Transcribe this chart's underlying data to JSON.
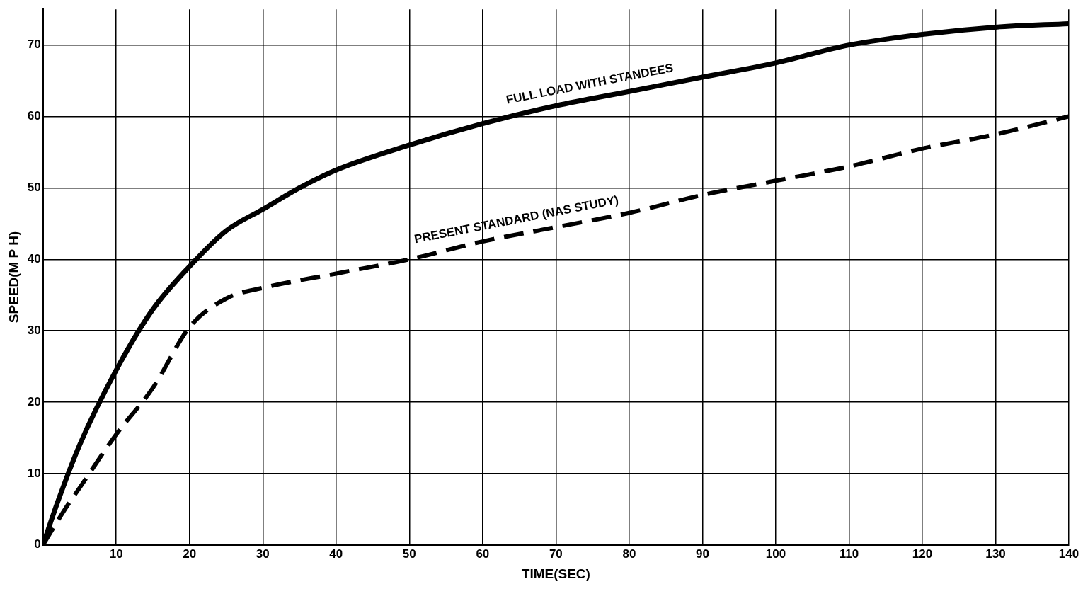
{
  "chart_data": {
    "type": "line",
    "xlabel": "TIME(SEC)",
    "ylabel": "SPEED(M P H)",
    "xlim": [
      0,
      140
    ],
    "xticks": [
      10,
      20,
      30,
      40,
      50,
      60,
      70,
      80,
      90,
      100,
      110,
      120,
      130,
      140
    ],
    "ylim": [
      0,
      75
    ],
    "yticks": [
      0,
      10,
      20,
      30,
      40,
      50,
      60,
      70
    ],
    "grid": true,
    "legend": false,
    "marker": "none",
    "series": [
      {
        "name": "FULL LOAD WITH STANDEES",
        "color": "#000000",
        "line_style": "solid",
        "x": [
          0,
          2,
          5,
          10,
          15,
          20,
          25,
          30,
          35,
          40,
          50,
          60,
          70,
          80,
          90,
          100,
          110,
          120,
          130,
          140
        ],
        "values": [
          0,
          6,
          14,
          24.5,
          33,
          39,
          44,
          47,
          50,
          52.5,
          56,
          59,
          61.5,
          63.5,
          65.5,
          67.5,
          70,
          71.5,
          72.5,
          73
        ]
      },
      {
        "name": "PRESENT STANDARD (NAS STUDY)",
        "color": "#000000",
        "line_style": "dashed",
        "x": [
          0,
          3,
          5,
          10,
          15,
          20,
          25,
          30,
          40,
          50,
          60,
          70,
          80,
          90,
          100,
          110,
          120,
          130,
          140
        ],
        "values": [
          0,
          5,
          8,
          15.5,
          22,
          30.5,
          34.5,
          36,
          38,
          40,
          42.5,
          44.5,
          46.5,
          49,
          51,
          53,
          55.5,
          57.5,
          60
        ]
      }
    ]
  }
}
